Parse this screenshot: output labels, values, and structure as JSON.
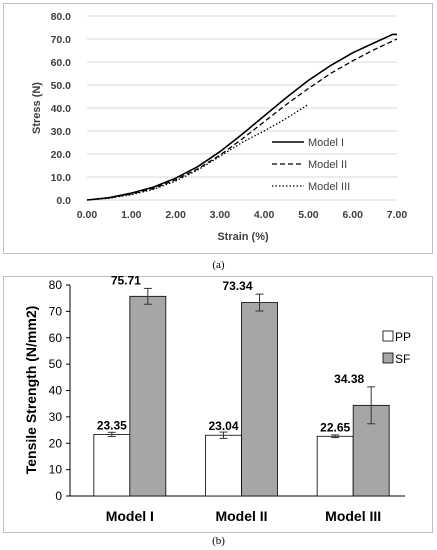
{
  "chart_data": [
    {
      "type": "line",
      "caption": "(a)",
      "xlabel": "Strain (%)",
      "ylabel": "Stress (N)",
      "xlim": [
        0,
        7
      ],
      "ylim": [
        0,
        80
      ],
      "xticks": [
        "0.00",
        "1.00",
        "2.00",
        "3.00",
        "4.00",
        "5.00",
        "6.00",
        "7.00"
      ],
      "yticks": [
        "0.0",
        "10.0",
        "20.0",
        "30.0",
        "40.0",
        "50.0",
        "60.0",
        "70.0",
        "80.0"
      ],
      "grid": "horizontal",
      "legend_position": "bottom-right",
      "series": [
        {
          "name": "Model I",
          "style": "solid",
          "x": [
            0,
            0.5,
            1,
            1.5,
            2,
            2.5,
            3,
            3.5,
            4,
            4.5,
            5,
            5.5,
            6,
            6.5,
            6.9,
            7.0
          ],
          "y": [
            0,
            1,
            3,
            5.6,
            9.5,
            14.5,
            21,
            28.5,
            36.5,
            44.5,
            52,
            58.5,
            64,
            68.5,
            72,
            72
          ]
        },
        {
          "name": "Model II",
          "style": "dashed",
          "x": [
            0,
            0.5,
            1,
            1.5,
            2,
            2.5,
            3,
            3.5,
            4,
            4.5,
            5,
            5.5,
            6,
            6.5,
            7.0
          ],
          "y": [
            0,
            0.9,
            2.6,
            5,
            8.8,
            13.5,
            19.5,
            26.5,
            34,
            41.5,
            48.5,
            55,
            60.5,
            65.5,
            70
          ]
        },
        {
          "name": "Model III",
          "style": "dotted",
          "x": [
            0,
            0.5,
            1,
            1.5,
            2,
            2.5,
            3,
            3.5,
            4,
            4.5,
            5.0
          ],
          "y": [
            0,
            0.8,
            2.3,
            4.6,
            8.2,
            13,
            19,
            25,
            30,
            35.5,
            41.5
          ]
        }
      ]
    },
    {
      "type": "bar",
      "caption": "(b)",
      "ylabel": "Tensile Strength (N/mm2)",
      "ylim": [
        0,
        80
      ],
      "yticks": [
        "0",
        "10",
        "20",
        "30",
        "40",
        "50",
        "60",
        "70",
        "80"
      ],
      "categories": [
        "Model I",
        "Model II",
        "Model III"
      ],
      "legend_position": "right",
      "series": [
        {
          "name": "PP",
          "color": "#ffffff",
          "values": [
            23.35,
            23.04,
            22.65
          ],
          "labels": [
            "23.35",
            "23.04",
            "22.65"
          ],
          "errors": [
            0.8,
            1.2,
            0.5
          ]
        },
        {
          "name": "SF",
          "color": "#a6a6a6",
          "values": [
            75.71,
            73.34,
            34.38
          ],
          "labels": [
            "75.71",
            "73.34",
            "34.38"
          ],
          "errors": [
            3.0,
            3.2,
            7.0
          ]
        }
      ]
    }
  ]
}
